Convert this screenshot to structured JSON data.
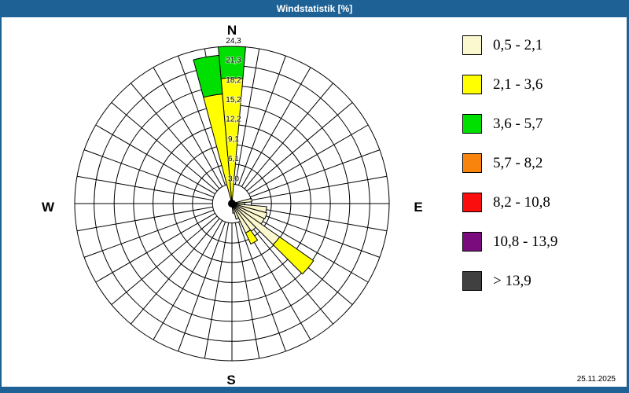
{
  "window": {
    "title": "Windstatistik [%]",
    "date": "25.11.2025"
  },
  "colors": {
    "frame": "#1E6295",
    "background": "#FFFFFF",
    "grid": "#000000"
  },
  "compass": {
    "north": "N",
    "east": "E",
    "south": "S",
    "west": "W"
  },
  "legend": {
    "items": [
      {
        "label": "0,5 - 2,1",
        "color": "#FBF7CE",
        "dotted": false
      },
      {
        "label": "2,1 - 3,6",
        "color": "#FFFF00",
        "dotted": false
      },
      {
        "label": "3,6 - 5,7",
        "color": "#00E000",
        "dotted": false
      },
      {
        "label": "5,7 - 8,2",
        "color": "#F8830D",
        "dotted": false
      },
      {
        "label": "8,2 - 10,8",
        "color": "#FB0E0E",
        "dotted": false
      },
      {
        "label": "10,8 - 13,9",
        "color": "#7B0C7E",
        "dotted": true
      },
      {
        "label": "> 13,9",
        "color": "#404040",
        "dotted": true
      }
    ]
  },
  "chart_data": {
    "type": "windrose",
    "title": "Windstatistik [%]",
    "unit": "%",
    "sector_width_deg": 10,
    "max_value": 24.3,
    "ring_values": [
      3.0,
      6.1,
      9.1,
      12.2,
      15.2,
      18.2,
      21.3,
      24.3
    ],
    "ring_labels": [
      "3,0",
      "6,1",
      "9,1",
      "12,2",
      "15,2",
      "18,2",
      "21,3",
      "24,3"
    ],
    "classes": [
      "0,5 - 2,1",
      "2,1 - 3,6",
      "3,6 - 5,7",
      "5,7 - 8,2",
      "8,2 - 10,8",
      "10,8 - 13,9",
      "> 13,9"
    ],
    "sectors": [
      {
        "direction_deg": 0,
        "cumulative": [
          0.4,
          19.4,
          24.3
        ]
      },
      {
        "direction_deg": 350,
        "cumulative": [
          0.4,
          17.0,
          23.0
        ]
      },
      {
        "direction_deg": 80,
        "cumulative": [
          3.1
        ]
      },
      {
        "direction_deg": 90,
        "cumulative": [
          2.0
        ]
      },
      {
        "direction_deg": 100,
        "cumulative": [
          5.4
        ]
      },
      {
        "direction_deg": 110,
        "cumulative": [
          5.6
        ]
      },
      {
        "direction_deg": 120,
        "cumulative": [
          5.5
        ]
      },
      {
        "direction_deg": 130,
        "cumulative": [
          9.0,
          15.4
        ]
      },
      {
        "direction_deg": 140,
        "cumulative": [
          5.2
        ]
      },
      {
        "direction_deg": 150,
        "cumulative": [
          5.0,
          6.9
        ]
      },
      {
        "direction_deg": 160,
        "cumulative": [
          2.5
        ]
      },
      {
        "direction_deg": 170,
        "cumulative": [
          1.5
        ]
      }
    ]
  }
}
